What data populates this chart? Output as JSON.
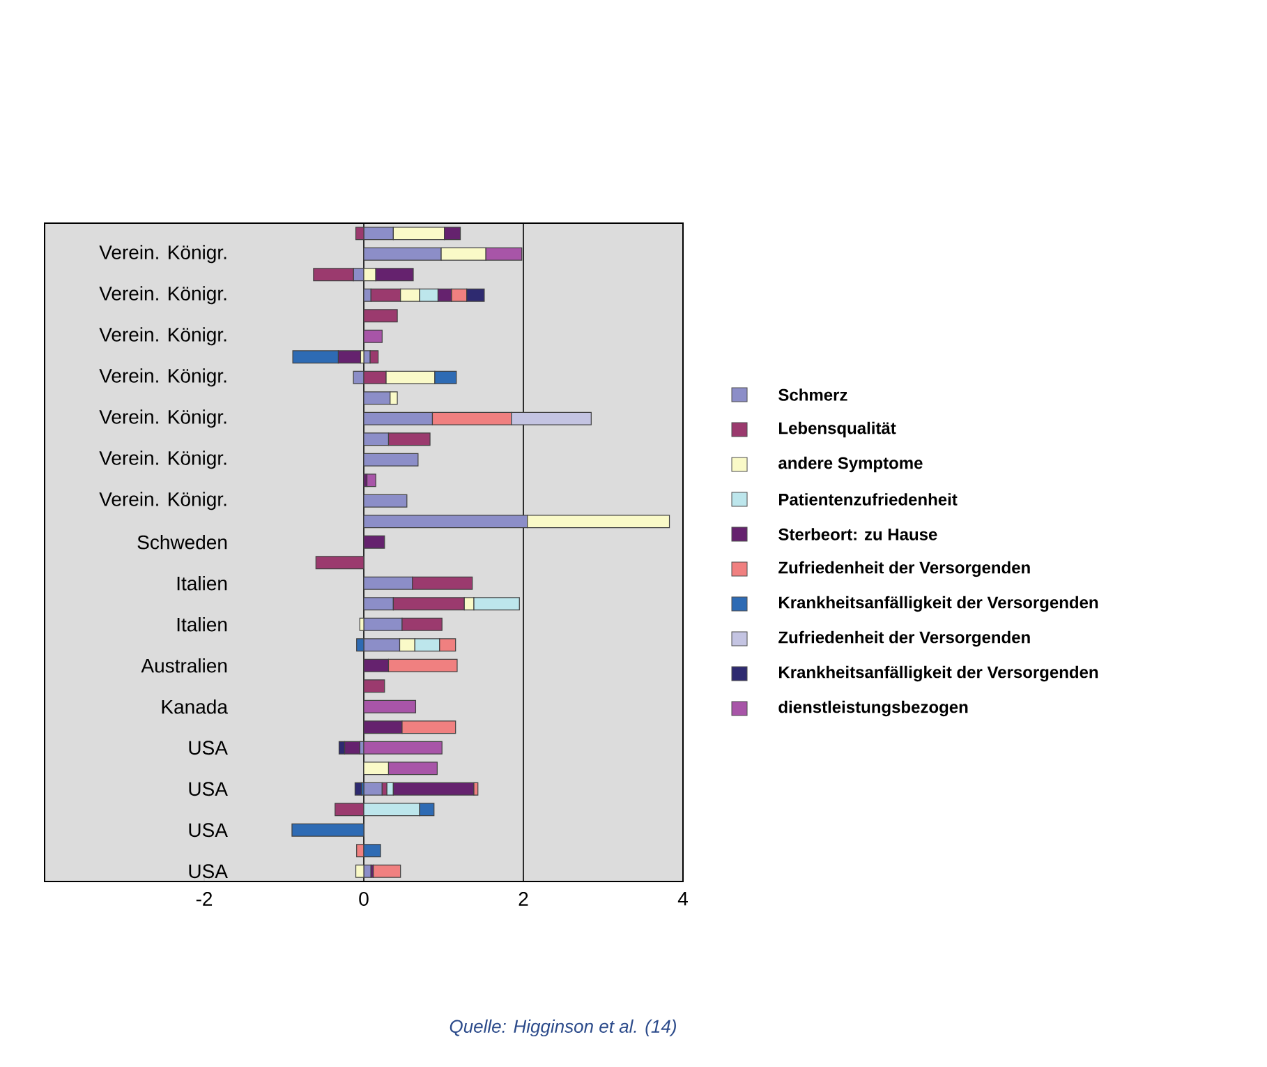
{
  "chart_data": {
    "type": "bar",
    "orientation": "horizontal",
    "stacked": true,
    "categories": [
      null,
      "Verein. Königr.",
      null,
      "Verein. Königr.",
      null,
      "Verein. Königr.",
      null,
      "Verein. Königr.",
      null,
      "Verein. Königr.",
      null,
      "Verein. Königr.",
      null,
      "Verein. Königr.",
      null,
      "Schweden",
      null,
      "Italien",
      null,
      "Italien",
      null,
      "Australien",
      null,
      "Kanada",
      null,
      "USA",
      null,
      "USA",
      null,
      "USA",
      null,
      "USA"
    ],
    "series": [
      {
        "name": "Schmerz",
        "color": "#8c8ec8",
        "values": [
          0.37,
          0.97,
          -0.13,
          0.09,
          null,
          null,
          0.08,
          -0.13,
          0.33,
          0.86,
          0.31,
          0.68,
          null,
          0.54,
          2.05,
          null,
          null,
          0.61,
          0.37,
          0.48,
          0.45,
          null,
          null,
          null,
          null,
          -0.05,
          null,
          0.23,
          null,
          null,
          null,
          0.09
        ]
      },
      {
        "name": "Lebensqualität",
        "color": "#9b3a6e",
        "values": [
          -0.1,
          null,
          -0.5,
          0.37,
          0.42,
          null,
          0.1,
          0.28,
          null,
          null,
          0.52,
          null,
          null,
          null,
          null,
          null,
          -0.6,
          0.75,
          0.89,
          0.5,
          null,
          null,
          0.26,
          null,
          null,
          null,
          null,
          0.06,
          -0.36,
          null,
          null,
          null
        ]
      },
      {
        "name": "andere Symptome",
        "color": "#fafac8",
        "values": [
          0.64,
          0.56,
          0.15,
          0.24,
          null,
          null,
          -0.04,
          0.61,
          0.09,
          null,
          null,
          null,
          null,
          null,
          1.78,
          null,
          null,
          null,
          0.12,
          -0.05,
          0.19,
          null,
          null,
          null,
          null,
          null,
          0.31,
          null,
          null,
          null,
          null,
          -0.1
        ]
      },
      {
        "name": "Patientenzufriedenheit",
        "color": "#bde6ec",
        "values": [
          null,
          null,
          null,
          0.23,
          null,
          null,
          null,
          null,
          null,
          null,
          null,
          null,
          null,
          null,
          null,
          null,
          null,
          null,
          0.57,
          null,
          0.31,
          null,
          null,
          null,
          null,
          null,
          null,
          0.08,
          0.7,
          null,
          null,
          null
        ]
      },
      {
        "name": "Sterbeort: zu Hause",
        "color": "#65226e",
        "values": [
          0.2,
          null,
          0.47,
          0.17,
          null,
          null,
          -0.28,
          null,
          null,
          null,
          null,
          null,
          0.04,
          null,
          null,
          0.26,
          null,
          null,
          null,
          null,
          null,
          0.31,
          null,
          null,
          0.48,
          -0.19,
          null,
          1.01,
          null,
          null,
          null,
          0.03
        ]
      },
      {
        "name": "Zufriedenheit der Versorgenden",
        "color": "#f08080",
        "values": [
          null,
          null,
          null,
          0.19,
          null,
          null,
          null,
          null,
          null,
          0.99,
          null,
          null,
          null,
          null,
          null,
          null,
          null,
          null,
          null,
          null,
          0.2,
          0.86,
          null,
          null,
          0.67,
          null,
          null,
          0.05,
          null,
          null,
          -0.09,
          0.34
        ]
      },
      {
        "name": "Krankheitsanfälligkeit der Versorgenden",
        "color": "#2e6bb4",
        "values": [
          null,
          null,
          null,
          null,
          null,
          null,
          -0.57,
          0.27,
          null,
          null,
          null,
          null,
          null,
          null,
          null,
          null,
          null,
          null,
          null,
          null,
          -0.09,
          null,
          null,
          null,
          null,
          null,
          null,
          -0.03,
          0.18,
          -0.9,
          0.21,
          null
        ]
      },
      {
        "name": "Zufriedenheit der Versorgenden",
        "color": "#c4c4e2",
        "values": [
          null,
          null,
          null,
          null,
          null,
          null,
          null,
          null,
          null,
          1.0,
          null,
          null,
          null,
          null,
          null,
          null,
          null,
          null,
          null,
          null,
          null,
          null,
          null,
          null,
          null,
          null,
          null,
          null,
          null,
          null,
          null,
          null
        ]
      },
      {
        "name": "Krankheitsanfälligkeit der Versorgenden",
        "color": "#2e2a70",
        "values": [
          null,
          null,
          null,
          0.22,
          null,
          null,
          null,
          null,
          null,
          null,
          null,
          null,
          null,
          null,
          null,
          null,
          null,
          null,
          null,
          null,
          null,
          null,
          null,
          null,
          null,
          -0.07,
          null,
          -0.08,
          null,
          null,
          null,
          null
        ]
      },
      {
        "name": "dienstleistungsbezogen",
        "color": "#a855a8",
        "values": [
          null,
          0.45,
          null,
          null,
          null,
          0.23,
          null,
          null,
          null,
          null,
          null,
          null,
          0.11,
          null,
          null,
          null,
          null,
          null,
          null,
          null,
          null,
          null,
          null,
          0.65,
          null,
          0.98,
          0.61,
          null,
          null,
          null,
          null,
          null
        ]
      }
    ],
    "xlim": [
      -4,
      4
    ],
    "xticks": [
      -2,
      0,
      2,
      4
    ],
    "legend": "right",
    "ref_lines": [
      {
        "axis": "x",
        "value": 0,
        "color": "#000000"
      },
      {
        "axis": "x",
        "value": 2,
        "color": "#000000"
      }
    ],
    "annotations": [
      "Quelle: Higginson et al. (14)"
    ]
  }
}
